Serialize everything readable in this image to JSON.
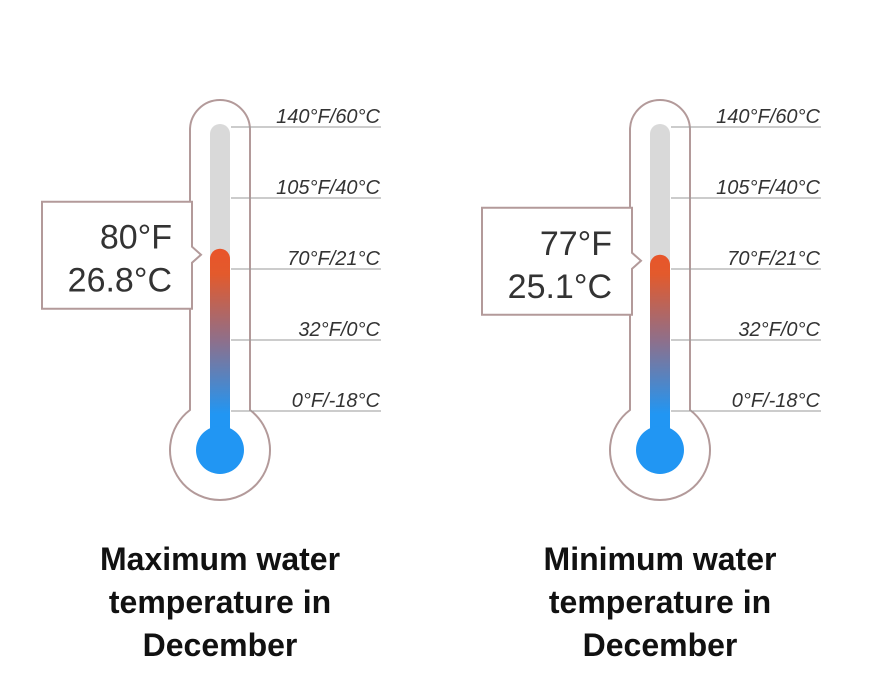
{
  "chart_data": [
    {
      "type": "thermometer",
      "value_f": 80,
      "value_c": 26.8,
      "value_label_f": "80°F",
      "value_label_c": "26.8°C",
      "scale": [
        {
          "f": 140,
          "c": 60,
          "label": "140°F/60°C"
        },
        {
          "f": 105,
          "c": 40,
          "label": "105°F/40°C"
        },
        {
          "f": 70,
          "c": 21,
          "label": "70°F/21°C"
        },
        {
          "f": 32,
          "c": 0,
          "label": "32°F/0°C"
        },
        {
          "f": 0,
          "c": -18,
          "label": "0°F/-18°C"
        }
      ],
      "title_lines": [
        "Maximum water",
        "temperature in",
        "December"
      ]
    },
    {
      "type": "thermometer",
      "value_f": 77,
      "value_c": 25.1,
      "value_label_f": "77°F",
      "value_label_c": "25.1°C",
      "scale": [
        {
          "f": 140,
          "c": 60,
          "label": "140°F/60°C"
        },
        {
          "f": 105,
          "c": 40,
          "label": "105°F/40°C"
        },
        {
          "f": 70,
          "c": 21,
          "label": "70°F/21°C"
        },
        {
          "f": 32,
          "c": 0,
          "label": "32°F/0°C"
        },
        {
          "f": 0,
          "c": -18,
          "label": "0°F/-18°C"
        }
      ],
      "title_lines": [
        "Minimum water",
        "temperature in",
        "December"
      ]
    }
  ],
  "colors": {
    "outline": "#b39a9a",
    "tube_empty": "#d9d9d9",
    "hot": "#e8542a",
    "cold": "#2196f3",
    "line": "#999999",
    "text": "#333333"
  }
}
